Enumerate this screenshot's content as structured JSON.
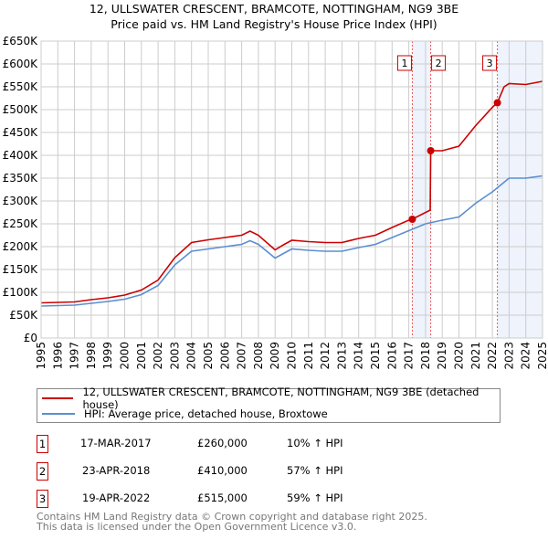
{
  "chart_data": {
    "type": "line",
    "title": "12, ULLSWATER CRESCENT, BRAMCOTE, NOTTINGHAM, NG9 3BE",
    "subtitle": "Price paid vs. HM Land Registry's House Price Index (HPI)",
    "xlim": [
      1995,
      2025
    ],
    "ylim": [
      0,
      650000
    ],
    "x_ticks": [
      "1995",
      "1996",
      "1997",
      "1998",
      "1999",
      "2000",
      "2001",
      "2002",
      "2003",
      "2004",
      "2005",
      "2006",
      "2007",
      "2008",
      "2009",
      "2010",
      "2011",
      "2012",
      "2013",
      "2014",
      "2015",
      "2016",
      "2017",
      "2018",
      "2019",
      "2020",
      "2021",
      "2022",
      "2023",
      "2024",
      "2025"
    ],
    "y_ticks": [
      {
        "v": 0,
        "l": "£0"
      },
      {
        "v": 50000,
        "l": "£50K"
      },
      {
        "v": 100000,
        "l": "£100K"
      },
      {
        "v": 150000,
        "l": "£150K"
      },
      {
        "v": 200000,
        "l": "£200K"
      },
      {
        "v": 250000,
        "l": "£250K"
      },
      {
        "v": 300000,
        "l": "£300K"
      },
      {
        "v": 350000,
        "l": "£350K"
      },
      {
        "v": 400000,
        "l": "£400K"
      },
      {
        "v": 450000,
        "l": "£450K"
      },
      {
        "v": 500000,
        "l": "£500K"
      },
      {
        "v": 550000,
        "l": "£550K"
      },
      {
        "v": 600000,
        "l": "£600K"
      },
      {
        "v": 650000,
        "l": "£650K"
      }
    ],
    "grid": true,
    "series": [
      {
        "name": "12, ULLSWATER CRESCENT, BRAMCOTE, NOTTINGHAM, NG9 3BE (detached house)",
        "color": "#cc0000",
        "x": [
          1995,
          1996,
          1997,
          1998,
          1999,
          2000,
          2001,
          2002,
          2003,
          2004,
          2005,
          2006,
          2007,
          2007.5,
          2008,
          2009,
          2009.5,
          2010,
          2011,
          2012,
          2013,
          2014,
          2015,
          2016,
          2017,
          2017.2,
          2018.28,
          2018.31,
          2019,
          2020,
          2021,
          2022,
          2022.3,
          2022.7,
          2023,
          2024,
          2025
        ],
        "y": [
          77000,
          78000,
          79000,
          84000,
          88000,
          94000,
          105000,
          127000,
          176000,
          209000,
          215000,
          220000,
          225000,
          234000,
          225000,
          193000,
          204000,
          214000,
          211000,
          209000,
          209000,
          218000,
          225000,
          242000,
          258000,
          260000,
          280000,
          410000,
          410000,
          420000,
          465000,
          505000,
          515000,
          550000,
          557000,
          555000,
          562000
        ]
      },
      {
        "name": "HPI: Average price, detached house, Broxtowe",
        "color": "#5b8fd0",
        "x": [
          1995,
          1996,
          1997,
          1998,
          1999,
          2000,
          2001,
          2002,
          2003,
          2004,
          2005,
          2006,
          2007,
          2007.5,
          2008,
          2009,
          2009.5,
          2010,
          2011,
          2012,
          2013,
          2014,
          2015,
          2016,
          2017,
          2018,
          2019,
          2020,
          2021,
          2022,
          2022.5,
          2023,
          2024,
          2025
        ],
        "y": [
          70000,
          71000,
          72000,
          76000,
          80000,
          85000,
          95000,
          115000,
          160000,
          190000,
          195000,
          200000,
          205000,
          213000,
          205000,
          175000,
          185000,
          195000,
          192000,
          190000,
          190000,
          198000,
          205000,
          220000,
          235000,
          250000,
          258000,
          265000,
          295000,
          320000,
          335000,
          350000,
          350000,
          355000
        ]
      }
    ],
    "sales": [
      {
        "n": "1",
        "x": 2017.21,
        "date": "17-MAR-2017",
        "price": "£260,000",
        "value": 260000,
        "hpi": "10% ↑ HPI"
      },
      {
        "n": "2",
        "x": 2018.31,
        "date": "23-APR-2018",
        "price": "£410,000",
        "value": 410000,
        "hpi": "57% ↑ HPI"
      },
      {
        "n": "3",
        "x": 2022.3,
        "date": "19-APR-2022",
        "price": "£515,000",
        "value": 515000,
        "hpi": "59% ↑ HPI"
      }
    ],
    "shaded": [
      [
        2017.21,
        2018.31
      ],
      [
        2022.3,
        2025
      ]
    ],
    "legend_placement": "below"
  },
  "footer": [
    "Contains HM Land Registry data © Crown copyright and database right 2025.",
    "This data is licensed under the Open Government Licence v3.0."
  ]
}
